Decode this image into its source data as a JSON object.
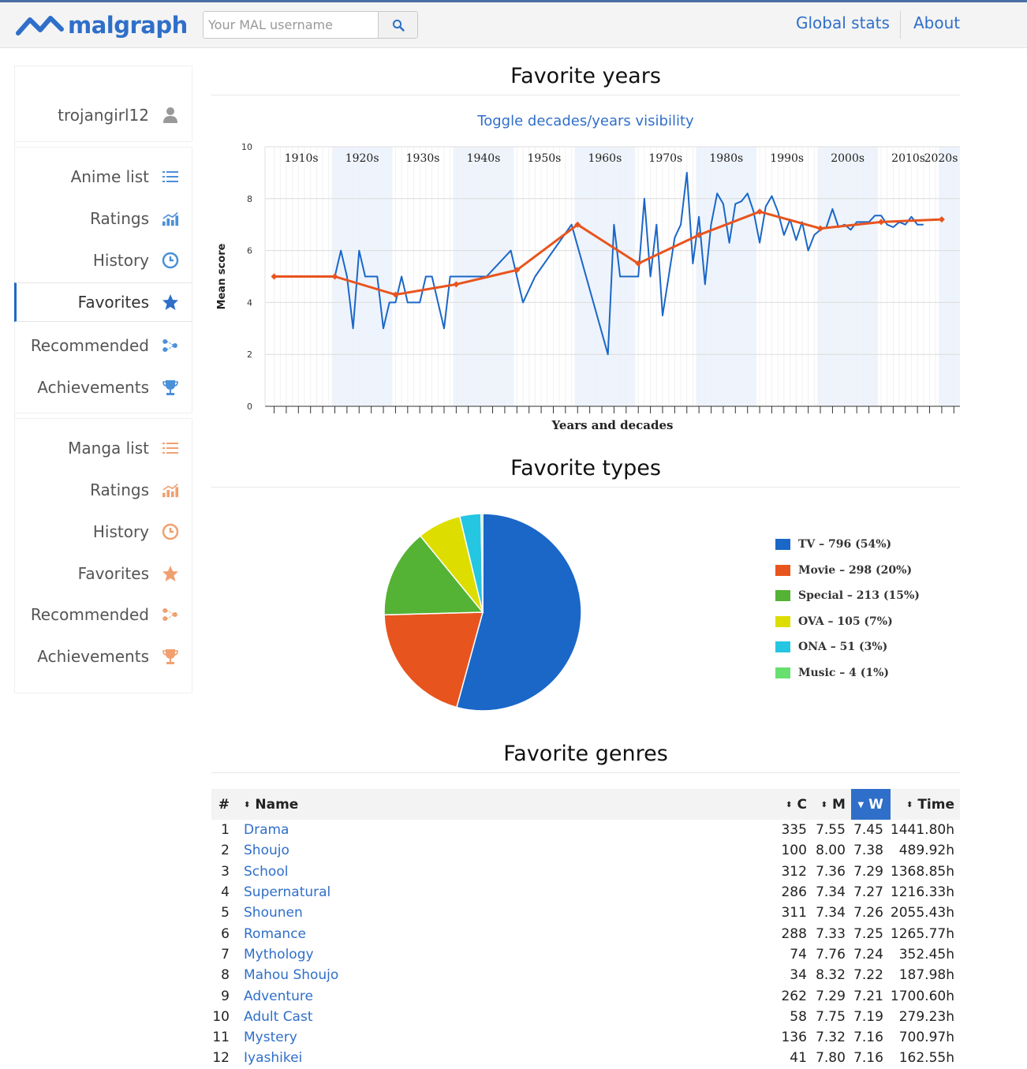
{
  "header": {
    "logo_text": "malgraph",
    "search_placeholder": "Your MAL username",
    "nav": [
      {
        "label": "Global stats"
      },
      {
        "label": "About"
      }
    ]
  },
  "sidebar": {
    "username": "trojangirl12",
    "anime": [
      {
        "label": "Anime list",
        "icon": "list-icon"
      },
      {
        "label": "Ratings",
        "icon": "ratings-chart-icon"
      },
      {
        "label": "History",
        "icon": "history-icon"
      },
      {
        "label": "Favorites",
        "icon": "star-icon",
        "active": true
      },
      {
        "label": "Recommended",
        "icon": "recommended-icon"
      },
      {
        "label": "Achievements",
        "icon": "trophy-icon"
      }
    ],
    "manga": [
      {
        "label": "Manga list",
        "icon": "list-icon"
      },
      {
        "label": "Ratings",
        "icon": "ratings-chart-icon"
      },
      {
        "label": "History",
        "icon": "history-icon"
      },
      {
        "label": "Favorites",
        "icon": "star-icon"
      },
      {
        "label": "Recommended",
        "icon": "recommended-icon"
      },
      {
        "label": "Achievements",
        "icon": "trophy-icon"
      }
    ],
    "colors": {
      "anime_icon": "#4a90d9",
      "manga_icon": "#f0a070",
      "active_border": "#1d69c7"
    }
  },
  "sections": {
    "years_title": "Favorite years",
    "toggle_label": "Toggle decades/years visibility",
    "types_title": "Favorite types",
    "genres_title": "Favorite genres"
  },
  "chart_data": [
    {
      "type": "line",
      "xlabel": "Years and decades",
      "ylabel": "Mean score",
      "ylim": [
        0,
        10
      ],
      "yticks": [
        0,
        2,
        4,
        6,
        8,
        10
      ],
      "xlim": [
        1910,
        2020
      ],
      "decade_labels": [
        "1910s",
        "1920s",
        "1930s",
        "1940s",
        "1950s",
        "1960s",
        "1970s",
        "1980s",
        "1990s",
        "2000s",
        "2010s",
        "2020s"
      ],
      "grid": true,
      "series": [
        {
          "kind": "years",
          "color": "#1a67c8",
          "x": [
            1920,
            1921,
            1922,
            1923,
            1924,
            1925,
            1926,
            1927,
            1928,
            1929,
            1930,
            1931,
            1932,
            1933,
            1934,
            1935,
            1936,
            1937,
            1938,
            1939,
            1940,
            1941,
            1942,
            1943,
            1944,
            1945,
            1949,
            1950,
            1951,
            1952,
            1953,
            1959,
            1965,
            1966,
            1967,
            1968,
            1969,
            1970,
            1971,
            1972,
            1973,
            1974,
            1975,
            1976,
            1977,
            1978,
            1979,
            1980,
            1981,
            1982,
            1983,
            1984,
            1985,
            1986,
            1987,
            1988,
            1989,
            1990,
            1991,
            1992,
            1993,
            1994,
            1995,
            1996,
            1997,
            1998,
            1999,
            2000,
            2001,
            2002,
            2003,
            2004,
            2005,
            2006,
            2007,
            2008,
            2009,
            2010,
            2011,
            2012,
            2013,
            2014,
            2015,
            2016,
            2017
          ],
          "y": [
            5.0,
            6.0,
            5.0,
            3.0,
            6.0,
            5.0,
            5.0,
            5.0,
            3.0,
            4.0,
            4.0,
            5.0,
            4.0,
            4.0,
            4.0,
            5.0,
            5.0,
            4.0,
            3.0,
            5.0,
            5.0,
            5.0,
            5.0,
            5.0,
            5.0,
            5.0,
            6.0,
            5.0,
            4.0,
            4.5,
            5.0,
            7.0,
            2.0,
            7.0,
            5.0,
            5.0,
            5.0,
            5.0,
            8.0,
            5.0,
            7.0,
            3.5,
            5.0,
            6.5,
            7.0,
            9.0,
            5.5,
            7.3,
            4.7,
            7.0,
            8.2,
            7.8,
            6.3,
            7.8,
            7.9,
            8.2,
            7.5,
            6.3,
            7.7,
            8.1,
            7.5,
            6.6,
            7.2,
            6.4,
            7.1,
            6.0,
            6.6,
            6.8,
            6.9,
            7.6,
            6.9,
            7.0,
            6.8,
            7.1,
            7.1,
            7.1,
            7.35,
            7.35,
            7.0,
            6.9,
            7.1,
            7.0,
            7.3,
            7.0,
            7.0
          ]
        },
        {
          "kind": "decades",
          "color": "#e8541e",
          "x": [
            1910,
            1920,
            1930,
            1940,
            1950,
            1960,
            1970,
            1980,
            1990,
            2000,
            2010,
            2020
          ],
          "y": [
            5.0,
            5.0,
            4.3,
            4.7,
            5.25,
            7.0,
            5.5,
            6.6,
            7.5,
            6.85,
            7.1,
            7.2
          ]
        }
      ]
    },
    {
      "type": "pie",
      "series": [
        {
          "name": "TV – 796 (54%)",
          "value": 796,
          "color": "#1a67c8"
        },
        {
          "name": "Movie – 298 (20%)",
          "value": 298,
          "color": "#e8541e"
        },
        {
          "name": "Special – 213 (15%)",
          "value": 213,
          "color": "#54b234"
        },
        {
          "name": "OVA – 105 (7%)",
          "value": 105,
          "color": "#dddd00"
        },
        {
          "name": "ONA – 51 (3%)",
          "value": 51,
          "color": "#24c6e2"
        },
        {
          "name": "Music – 4 (1%)",
          "value": 4,
          "color": "#68e070"
        }
      ]
    },
    {
      "type": "table",
      "columns": [
        "#",
        "Name",
        "C",
        "M",
        "W",
        "Time"
      ],
      "sorted_column": "W",
      "rows": [
        [
          "1",
          "Drama",
          "335",
          "7.55",
          "7.45",
          "1441.80h"
        ],
        [
          "2",
          "Shoujo",
          "100",
          "8.00",
          "7.38",
          "489.92h"
        ],
        [
          "3",
          "School",
          "312",
          "7.36",
          "7.29",
          "1368.85h"
        ],
        [
          "4",
          "Supernatural",
          "286",
          "7.34",
          "7.27",
          "1216.33h"
        ],
        [
          "5",
          "Shounen",
          "311",
          "7.34",
          "7.26",
          "2055.43h"
        ],
        [
          "6",
          "Romance",
          "288",
          "7.33",
          "7.25",
          "1265.77h"
        ],
        [
          "7",
          "Mythology",
          "74",
          "7.76",
          "7.24",
          "352.45h"
        ],
        [
          "8",
          "Mahou Shoujo",
          "34",
          "8.32",
          "7.22",
          "187.98h"
        ],
        [
          "9",
          "Adventure",
          "262",
          "7.29",
          "7.21",
          "1700.60h"
        ],
        [
          "10",
          "Adult Cast",
          "58",
          "7.75",
          "7.19",
          "279.23h"
        ],
        [
          "11",
          "Mystery",
          "136",
          "7.32",
          "7.16",
          "700.97h"
        ],
        [
          "12",
          "Iyashikei",
          "41",
          "7.80",
          "7.16",
          "162.55h"
        ]
      ]
    }
  ]
}
